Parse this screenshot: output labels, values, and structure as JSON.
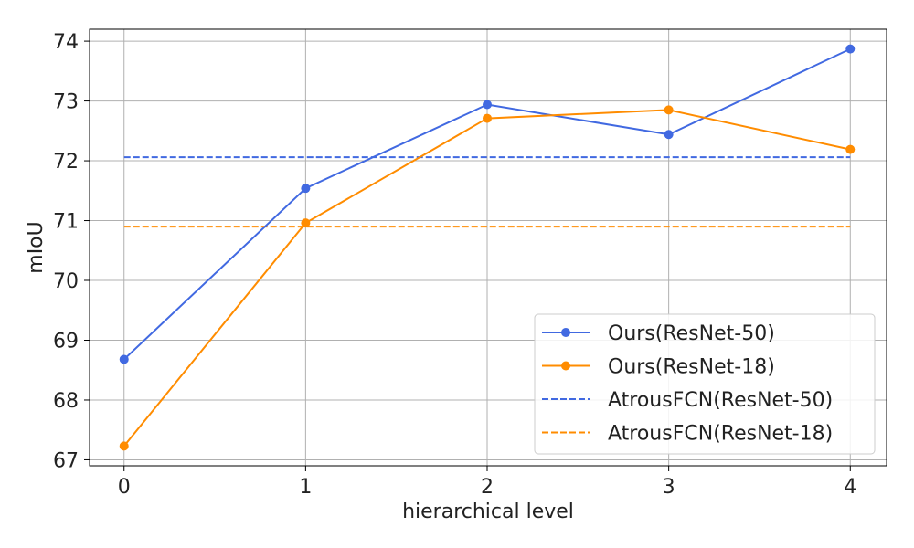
{
  "chart_data": {
    "type": "line",
    "title": "",
    "xlabel": "hierarchical level",
    "ylabel": "mIoU",
    "x": [
      0,
      1,
      2,
      3,
      4
    ],
    "xlim": [
      -0.19,
      4.2
    ],
    "ylim": [
      66.9,
      74.2
    ],
    "xticks": [
      "0",
      "1",
      "2",
      "3",
      "4"
    ],
    "yticks": [
      "67",
      "68",
      "69",
      "70",
      "71",
      "72",
      "73",
      "74"
    ],
    "grid": true,
    "legend_position": "bottom-right",
    "series": [
      {
        "name": "Ours(ResNet-50)",
        "values": [
          68.68,
          71.54,
          72.94,
          72.44,
          73.87
        ],
        "color": "#4169e1",
        "style": "solid",
        "marker": "circle"
      },
      {
        "name": "Ours(ResNet-18)",
        "values": [
          67.23,
          70.96,
          72.71,
          72.85,
          72.19
        ],
        "color": "#ff8c00",
        "style": "solid",
        "marker": "circle"
      },
      {
        "name": "AtrousFCN(ResNet-50)",
        "values": [
          72.06,
          72.06,
          72.06,
          72.06,
          72.06
        ],
        "color": "#4169e1",
        "style": "dashed",
        "marker": "none"
      },
      {
        "name": "AtrousFCN(ResNet-18)",
        "values": [
          70.9,
          70.9,
          70.9,
          70.9,
          70.9
        ],
        "color": "#ff8c00",
        "style": "dashed",
        "marker": "none"
      }
    ]
  }
}
